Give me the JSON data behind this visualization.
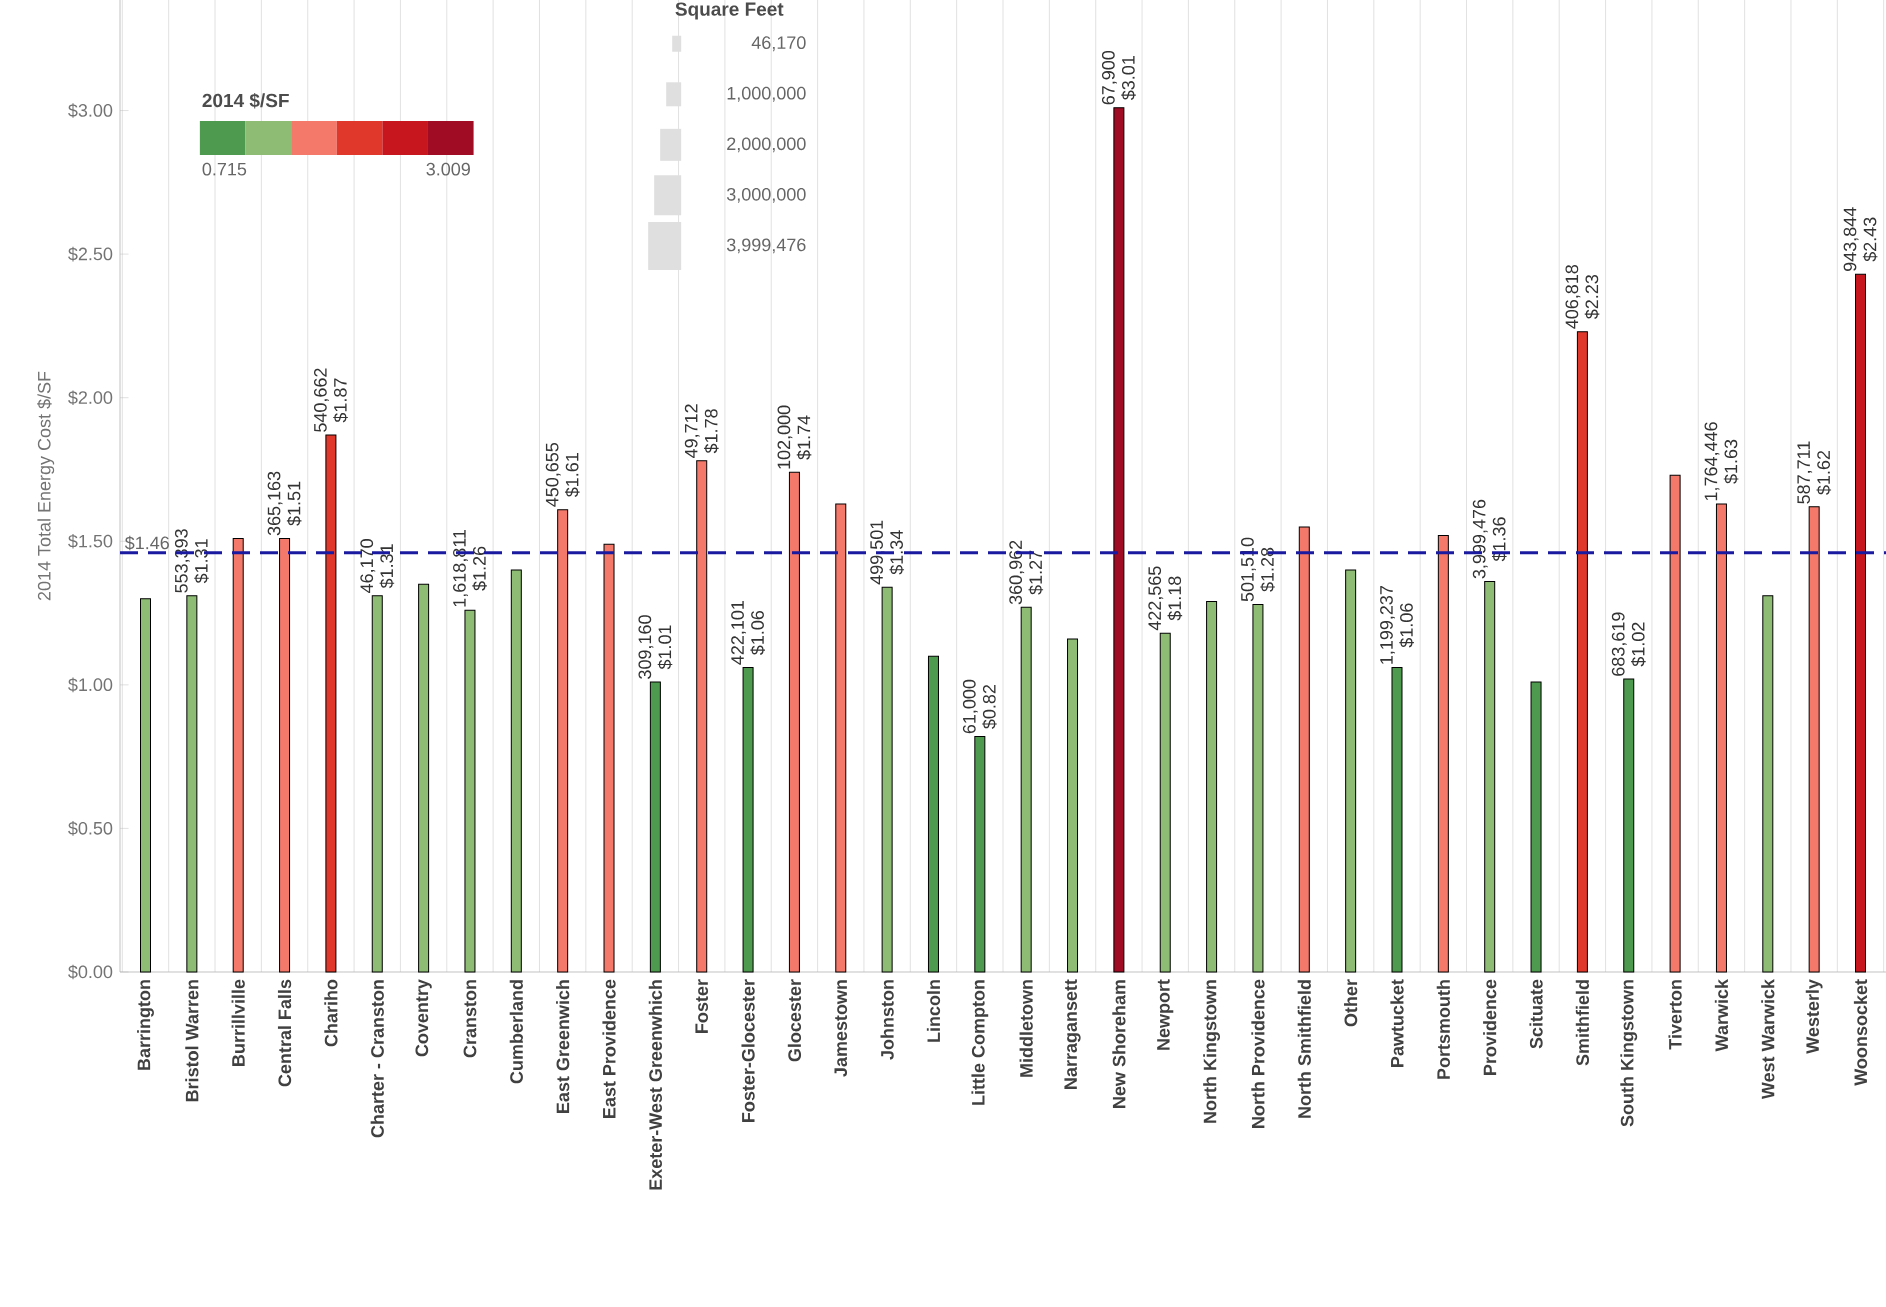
{
  "chart_data": {
    "type": "bar",
    "ylabel": "2014 Total Energy Cost $/SF",
    "categories": [
      "Barrington",
      "Bristol Warren",
      "Burrillville",
      "Central Falls",
      "Chariho",
      "Charter - Cranston",
      "Coventry",
      "Cranston",
      "Cumberland",
      "East Greenwich",
      "East Providence",
      "Exeter-West Greenwhich",
      "Foster",
      "Foster-Glocester",
      "Glocester",
      "Jamestown",
      "Johnston",
      "Lincoln",
      "Little Compton",
      "Middletown",
      "Narragansett",
      "New Shoreham",
      "Newport",
      "North Kingstown",
      "North Providence",
      "North Smithfield",
      "Other",
      "Pawtucket",
      "Portsmouth",
      "Providence",
      "Scituate",
      "Smithfield",
      "South Kingstown",
      "Tiverton",
      "Warwick",
      "West Warwick",
      "Westerly",
      "Woonsocket"
    ],
    "values": [
      1.3,
      1.31,
      1.51,
      1.51,
      1.87,
      1.31,
      1.35,
      1.26,
      1.4,
      1.61,
      1.49,
      1.01,
      1.78,
      1.06,
      1.74,
      1.63,
      1.34,
      1.1,
      0.82,
      1.27,
      1.16,
      3.01,
      1.18,
      1.29,
      1.28,
      1.55,
      1.4,
      1.06,
      1.52,
      1.36,
      1.01,
      2.23,
      1.02,
      1.73,
      1.63,
      1.31,
      1.62,
      2.43
    ],
    "colors": [
      "#8fbc74",
      "#8fbc74",
      "#f4796b",
      "#f4796b",
      "#e0392b",
      "#8fbc74",
      "#8fbc74",
      "#8fbc74",
      "#8fbc74",
      "#f4796b",
      "#f4796b",
      "#4e9a4e",
      "#f4796b",
      "#4e9a4e",
      "#f4796b",
      "#f4796b",
      "#8fbc74",
      "#4e9a4e",
      "#4e9a4e",
      "#8fbc74",
      "#8fbc74",
      "#a00c24",
      "#8fbc74",
      "#8fbc74",
      "#8fbc74",
      "#f4796b",
      "#8fbc74",
      "#4e9a4e",
      "#f4796b",
      "#8fbc74",
      "#4e9a4e",
      "#e0392b",
      "#4e9a4e",
      "#f4796b",
      "#f4796b",
      "#8fbc74",
      "#f4796b",
      "#c8161e"
    ],
    "value_labels": [
      null,
      "$1.31",
      null,
      "$1.51",
      "$1.87",
      "$1.31",
      null,
      "$1.26",
      null,
      "$1.61",
      null,
      "$1.01",
      "$1.78",
      "$1.06",
      "$1.74",
      null,
      "$1.34",
      null,
      "$0.82",
      "$1.27",
      null,
      "$3.01",
      "$1.18",
      null,
      "$1.28",
      null,
      null,
      "$1.06",
      null,
      "$1.36",
      null,
      "$2.23",
      "$1.02",
      null,
      "$1.63",
      null,
      "$1.62",
      "$2.43"
    ],
    "ylim": [
      0,
      3.385
    ],
    "yticks": [
      {
        "value": 0,
        "label": "$0.00"
      },
      {
        "value": 0.5,
        "label": "$0.50"
      },
      {
        "value": 1,
        "label": "$1.00"
      },
      {
        "value": 1.5,
        "label": "$1.50"
      },
      {
        "value": 2,
        "label": "$2.00"
      },
      {
        "value": 2.5,
        "label": "$2.50"
      },
      {
        "value": 3,
        "label": "$3.00"
      }
    ],
    "grid": "x",
    "ref_lines": [
      {
        "axis": "y",
        "value": 1.46,
        "label": "$1.46",
        "color": "#1a1aa0",
        "line_style": "dashed"
      }
    ],
    "legend_title": "2014 $/SF",
    "annotations": [
      {
        "text": "553,393",
        "x": "Bristol Warren",
        "y": 1.31
      },
      {
        "text": "365,163",
        "x": "Central Falls",
        "y": 1.51
      },
      {
        "text": "540,662",
        "x": "Chariho",
        "y": 1.87
      },
      {
        "text": "46,170",
        "x": "Charter - Cranston",
        "y": 1.31
      },
      {
        "text": "1,618,811",
        "x": "Cranston",
        "y": 1.26
      },
      {
        "text": "450,655",
        "x": "East Greenwich",
        "y": 1.61
      },
      {
        "text": "309,160",
        "x": "Exeter-West Greenwhich",
        "y": 1.01
      },
      {
        "text": "49,712",
        "x": "Foster",
        "y": 1.78
      },
      {
        "text": "422,101",
        "x": "Foster-Glocester",
        "y": 1.06
      },
      {
        "text": "102,000",
        "x": "Glocester",
        "y": 1.74
      },
      {
        "text": "499,501",
        "x": "Johnston",
        "y": 1.34
      },
      {
        "text": "61,000",
        "x": "Little Compton",
        "y": 0.82
      },
      {
        "text": "360,962",
        "x": "Middletown",
        "y": 1.27
      },
      {
        "text": "67,900",
        "x": "New Shoreham",
        "y": 3.01
      },
      {
        "text": "422,565",
        "x": "Newport",
        "y": 1.18
      },
      {
        "text": "501,510",
        "x": "North Providence",
        "y": 1.28
      },
      {
        "text": "1,199,237",
        "x": "Pawtucket",
        "y": 1.06
      },
      {
        "text": "3,999,476",
        "x": "Providence",
        "y": 1.36
      },
      {
        "text": "406,818",
        "x": "Smithfield",
        "y": 2.23
      },
      {
        "text": "683,619",
        "x": "South Kingstown",
        "y": 1.02
      },
      {
        "text": "1,764,446",
        "x": "Warwick",
        "y": 1.63
      },
      {
        "text": "587,711",
        "x": "Westerly",
        "y": 1.62
      },
      {
        "text": "943,844",
        "x": "Woonsocket",
        "y": 2.43
      },
      "0.715",
      "3.009",
      "Square Feet",
      "46,170",
      "1,000,000",
      "2,000,000",
      "3,000,000",
      "3,999,476"
    ]
  }
}
